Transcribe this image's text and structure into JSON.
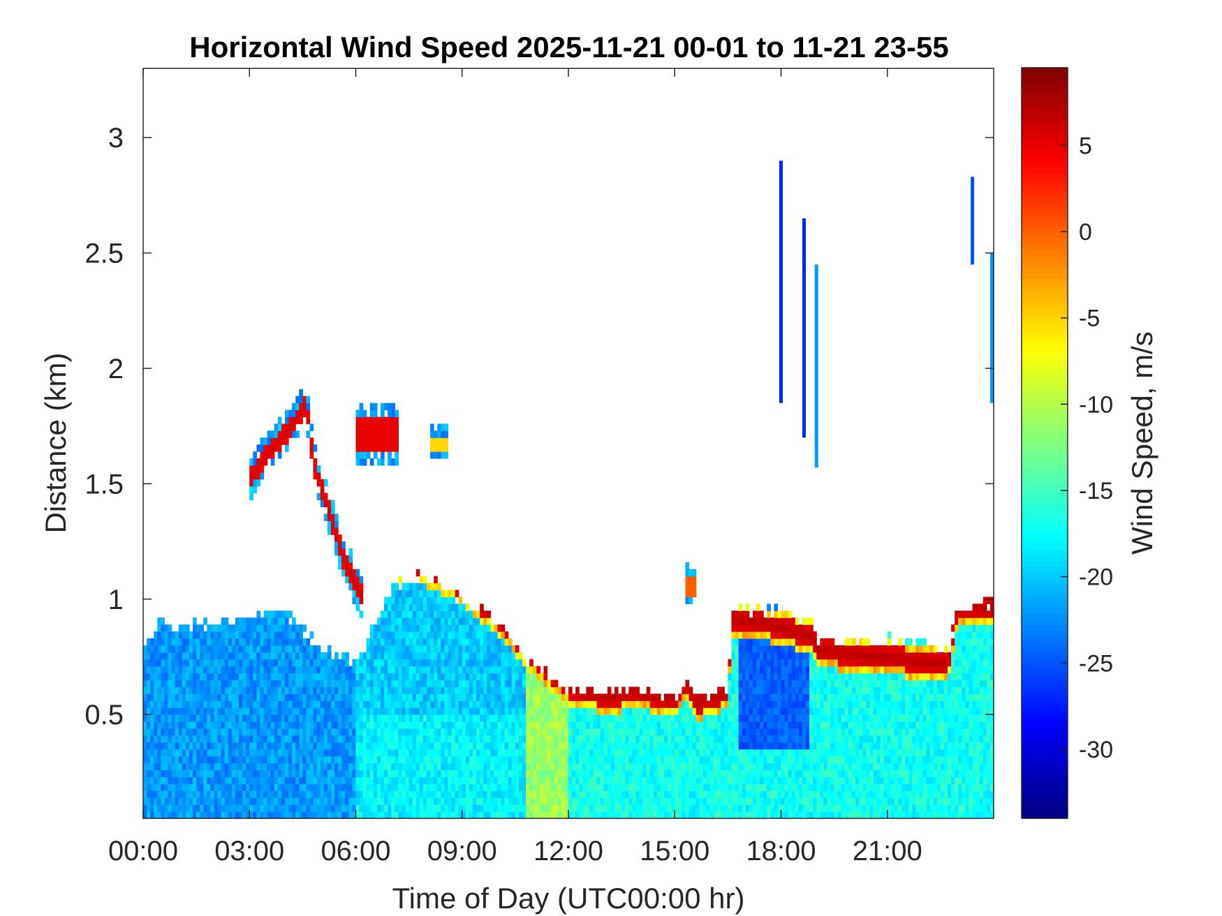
{
  "chart_data": {
    "type": "heatmap",
    "title": "Horizontal Wind Speed 2025-11-21 00-01 to 11-21 23-55",
    "xlabel": "Time of Day (UTC00:00 hr)",
    "ylabel": "Distance (km)",
    "xlim": [
      0,
      24
    ],
    "ylim": [
      0.05,
      3.3
    ],
    "x_ticks": [
      0,
      3,
      6,
      9,
      12,
      15,
      18,
      21
    ],
    "x_tick_labels": [
      "00:00",
      "03:00",
      "06:00",
      "09:00",
      "12:00",
      "15:00",
      "18:00",
      "21:00"
    ],
    "y_ticks": [
      0.5,
      1,
      1.5,
      2,
      2.5,
      3
    ],
    "y_tick_labels": [
      "0.5",
      "1",
      "1.5",
      "2",
      "2.5",
      "3"
    ],
    "colorbar": {
      "label": "Wind Speed, m/s",
      "range": [
        -34,
        9.5
      ],
      "colormap": "jet",
      "ticks": [
        5,
        0,
        -5,
        -10,
        -15,
        -20,
        -25,
        -30
      ],
      "tick_labels": [
        "5",
        "0",
        "-5",
        "-10",
        "-15",
        "-20",
        "-25",
        "-30"
      ]
    },
    "top_boundary_km": [
      [
        0.0,
        0.8
      ],
      [
        0.5,
        0.9
      ],
      [
        1.0,
        0.88
      ],
      [
        2.0,
        0.9
      ],
      [
        3.0,
        0.92
      ],
      [
        4.0,
        0.95
      ],
      [
        5.0,
        0.8
      ],
      [
        5.8,
        0.75
      ],
      [
        6.0,
        0.7
      ],
      [
        7.0,
        1.05
      ],
      [
        8.0,
        1.1
      ],
      [
        9.0,
        1.0
      ],
      [
        10.0,
        0.9
      ],
      [
        11.0,
        0.72
      ],
      [
        12.0,
        0.62
      ],
      [
        13.0,
        0.6
      ],
      [
        14.0,
        0.62
      ],
      [
        15.0,
        0.58
      ],
      [
        15.3,
        0.65
      ],
      [
        15.6,
        0.58
      ],
      [
        16.5,
        0.6
      ],
      [
        16.6,
        0.95
      ],
      [
        18.0,
        0.95
      ],
      [
        18.9,
        0.9
      ],
      [
        19.0,
        0.82
      ],
      [
        22.0,
        0.82
      ],
      [
        22.7,
        0.78
      ],
      [
        23.0,
        0.95
      ],
      [
        24.0,
        1.0
      ]
    ],
    "red_band_km": [
      [
        7.2,
        1.15
      ],
      [
        8.0,
        1.13
      ],
      [
        9.0,
        1.05
      ],
      [
        10.0,
        0.92
      ],
      [
        11.0,
        0.75
      ],
      [
        12.0,
        0.62
      ],
      [
        13.0,
        0.58
      ],
      [
        14.0,
        0.6
      ],
      [
        15.0,
        0.57
      ],
      [
        15.3,
        0.65
      ],
      [
        15.6,
        0.55
      ],
      [
        16.5,
        0.6
      ],
      [
        16.6,
        0.92
      ],
      [
        18.0,
        0.88
      ],
      [
        18.9,
        0.84
      ],
      [
        19.0,
        0.78
      ],
      [
        22.7,
        0.72
      ],
      [
        23.0,
        0.96
      ],
      [
        24.0,
        0.96
      ]
    ],
    "elevated_layer_km": [
      [
        3.0,
        1.52
      ],
      [
        3.5,
        1.63
      ],
      [
        4.2,
        1.75
      ],
      [
        4.6,
        1.85
      ],
      [
        4.8,
        1.6
      ],
      [
        5.2,
        1.4
      ],
      [
        5.6,
        1.2
      ],
      [
        5.9,
        1.1
      ],
      [
        6.2,
        1.0
      ]
    ],
    "isolated_patches": [
      {
        "x": [
          6.0,
          7.2
        ],
        "y": [
          1.58,
          1.85
        ],
        "core_speed": 5
      },
      {
        "x": [
          8.1,
          8.6
        ],
        "y": [
          1.6,
          1.75
        ],
        "core_speed": -5
      },
      {
        "x": [
          15.3,
          15.6
        ],
        "y": [
          0.95,
          1.15
        ],
        "core_speed": 0
      }
    ],
    "high_altitude_streaks_km": [
      {
        "x": 18.0,
        "y": [
          1.85,
          2.9
        ],
        "speed": -27
      },
      {
        "x": 18.65,
        "y": [
          1.7,
          2.65
        ],
        "speed": -27
      },
      {
        "x": 19.0,
        "y": [
          1.57,
          2.45
        ],
        "speed": -22
      },
      {
        "x": 23.4,
        "y": [
          2.45,
          2.83
        ],
        "speed": -25
      },
      {
        "x": 23.95,
        "y": [
          1.85,
          2.5
        ],
        "speed": -22
      }
    ],
    "grid": false,
    "legend": "none"
  }
}
